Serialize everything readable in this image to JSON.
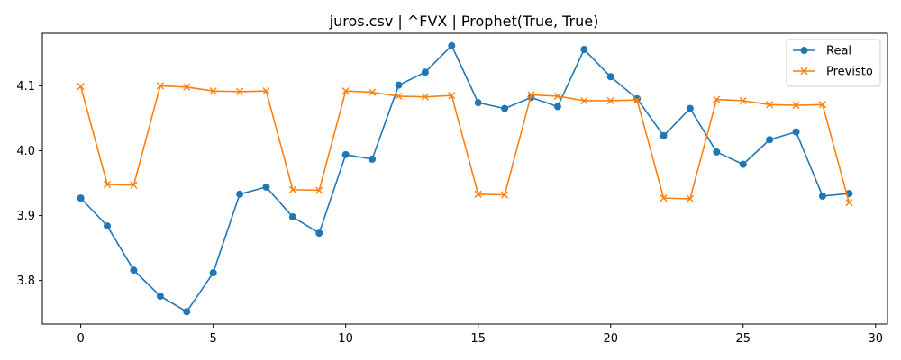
{
  "chart_data": {
    "type": "line",
    "title": "juros.csv | ^FVX | Prophet(True, True)",
    "xlabel": "",
    "ylabel": "",
    "xlim": [
      -1.45,
      30.45
    ],
    "ylim": [
      3.733,
      4.181
    ],
    "x_ticks": [
      0,
      5,
      10,
      15,
      20,
      25,
      30
    ],
    "y_ticks": [
      3.8,
      3.9,
      4.0,
      4.1
    ],
    "grid": false,
    "legend_position": "top-right",
    "x": [
      0,
      1,
      2,
      3,
      4,
      5,
      6,
      7,
      8,
      9,
      10,
      11,
      12,
      13,
      14,
      15,
      16,
      17,
      18,
      19,
      20,
      21,
      22,
      23,
      24,
      25,
      26,
      27,
      28,
      29
    ],
    "series": [
      {
        "name": "Real",
        "color": "#1f77b4",
        "marker": "circle",
        "values": [
          3.927,
          3.884,
          3.816,
          3.776,
          3.752,
          3.812,
          3.933,
          3.944,
          3.898,
          3.873,
          3.994,
          3.987,
          4.101,
          4.121,
          4.162,
          4.074,
          4.065,
          4.082,
          4.068,
          4.156,
          4.114,
          4.08,
          4.023,
          4.065,
          3.998,
          3.979,
          4.017,
          4.029,
          3.93,
          3.934
        ]
      },
      {
        "name": "Previsto",
        "color": "#ff7f0e",
        "marker": "x",
        "values": [
          4.099,
          3.948,
          3.947,
          4.1,
          4.098,
          4.092,
          4.091,
          4.092,
          3.94,
          3.939,
          4.092,
          4.09,
          4.084,
          4.083,
          4.085,
          3.933,
          3.932,
          4.086,
          4.084,
          4.077,
          4.077,
          4.078,
          3.927,
          3.926,
          4.079,
          4.077,
          4.071,
          4.07,
          4.071,
          3.92
        ]
      }
    ]
  }
}
